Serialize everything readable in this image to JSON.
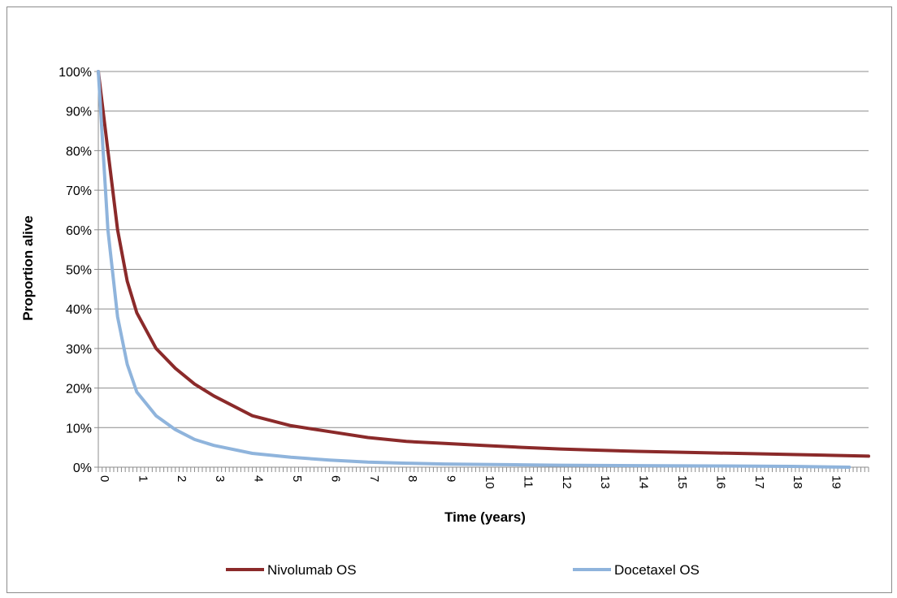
{
  "chart_data": {
    "type": "line",
    "title": "",
    "xlabel": "Time (years)",
    "ylabel": "Proportion  alive",
    "xlim": [
      0,
      20
    ],
    "ylim": [
      0,
      1
    ],
    "x_tick_labels": [
      "0",
      "1",
      "2",
      "3",
      "4",
      "5",
      "6",
      "7",
      "8",
      "9",
      "10",
      "11",
      "12",
      "13",
      "14",
      "15",
      "16",
      "17",
      "18",
      "19"
    ],
    "y_tick_labels": [
      "0%",
      "10%",
      "20%",
      "30%",
      "40%",
      "50%",
      "60%",
      "70%",
      "80%",
      "90%",
      "100%"
    ],
    "grid": "horizontal",
    "legend_position": "bottom",
    "series": [
      {
        "name": "Nivolumab OS",
        "color": "#8b2a2a",
        "x": [
          0,
          0.25,
          0.5,
          0.75,
          1,
          1.5,
          2,
          2.5,
          3,
          4,
          5,
          6,
          7,
          8,
          9,
          10,
          11,
          12,
          13,
          14,
          15,
          16,
          17,
          18,
          19,
          20
        ],
        "y": [
          1.0,
          0.8,
          0.6,
          0.47,
          0.39,
          0.3,
          0.25,
          0.21,
          0.18,
          0.13,
          0.105,
          0.09,
          0.075,
          0.065,
          0.06,
          0.055,
          0.05,
          0.046,
          0.043,
          0.04,
          0.038,
          0.036,
          0.034,
          0.032,
          0.03,
          0.028
        ]
      },
      {
        "name": "Docetaxel OS",
        "color": "#8fb4dc",
        "x": [
          0,
          0.25,
          0.5,
          0.75,
          1,
          1.5,
          2,
          2.5,
          3,
          4,
          5,
          6,
          7,
          8,
          9,
          10,
          11,
          12,
          14,
          16,
          18,
          19.5
        ],
        "y": [
          1.0,
          0.6,
          0.38,
          0.26,
          0.19,
          0.13,
          0.095,
          0.07,
          0.055,
          0.035,
          0.025,
          0.018,
          0.013,
          0.01,
          0.008,
          0.007,
          0.006,
          0.005,
          0.004,
          0.003,
          0.002,
          0.0
        ]
      }
    ]
  },
  "colors": {
    "gridline": "#8c8c8c",
    "frame": "#8c8c8c"
  }
}
